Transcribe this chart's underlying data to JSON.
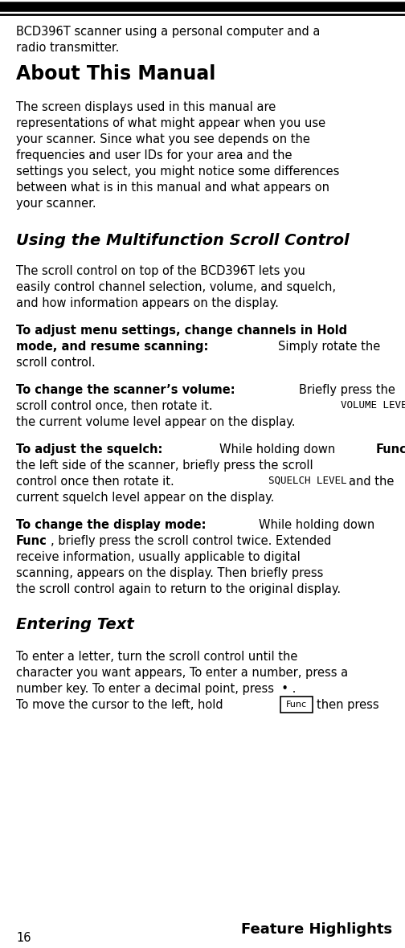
{
  "bg_color": "#ffffff",
  "text_color": "#000000",
  "page_number": "16",
  "section_header_right": "Feature Highlights",
  "about_title": "About This Manual",
  "scroll_title": "Using the Multifunction Scroll Control",
  "entering_title": "Entering Text"
}
